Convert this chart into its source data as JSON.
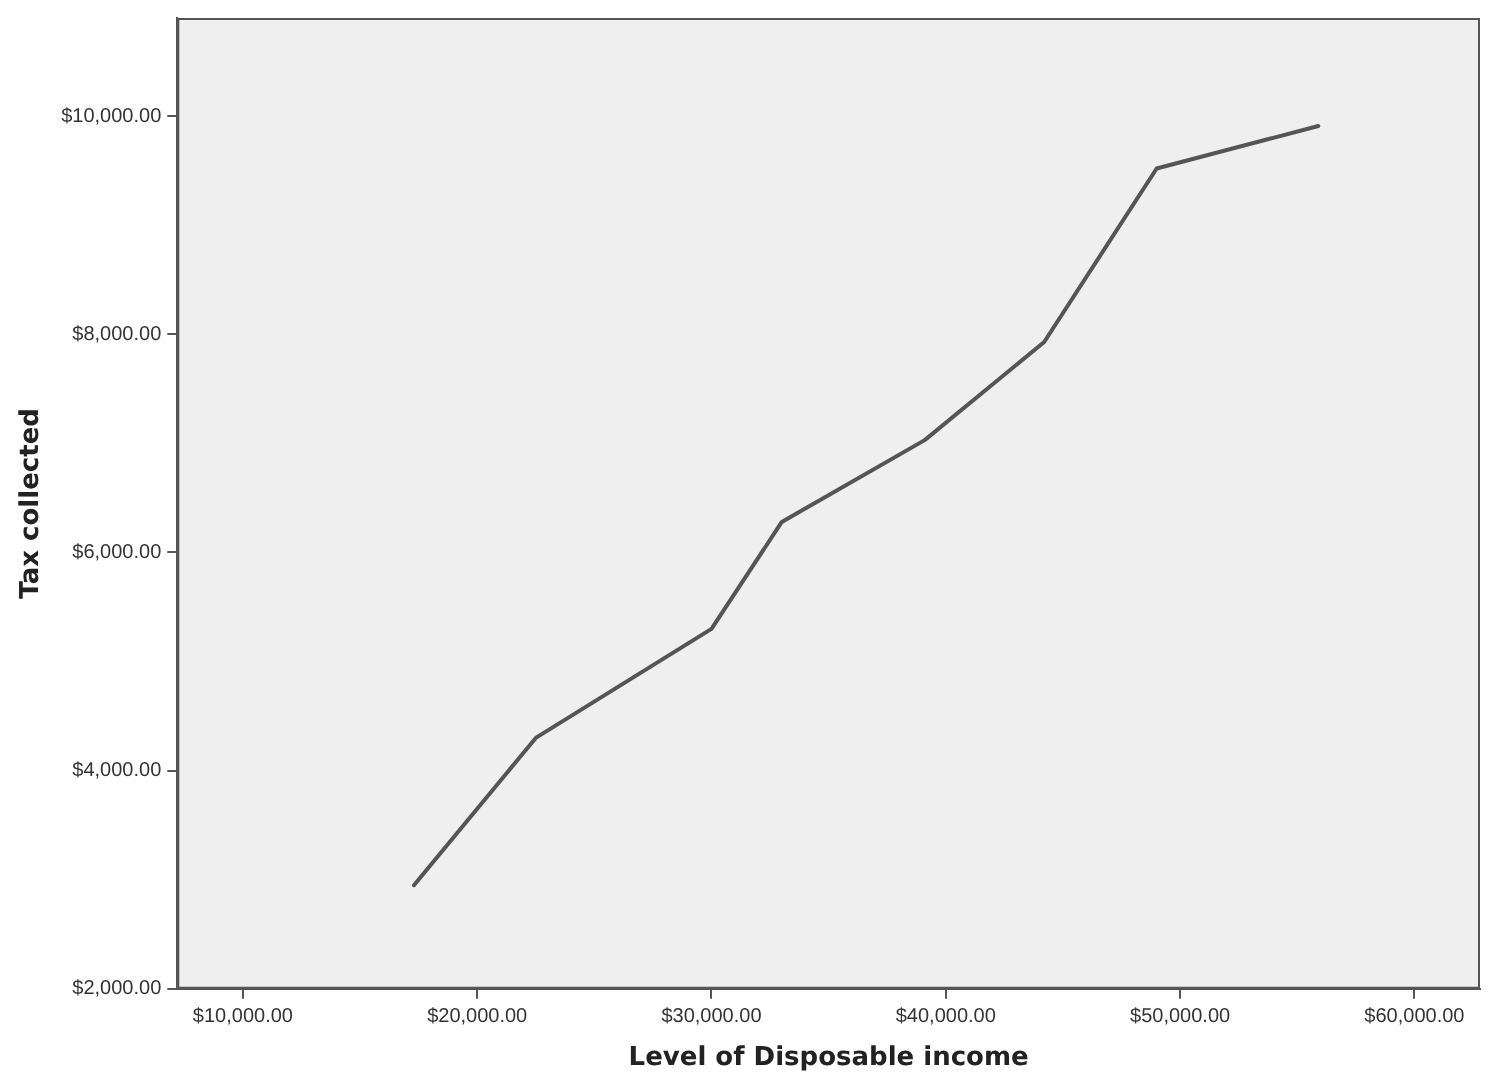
{
  "chart_data": {
    "type": "line",
    "xlabel": "Level of Disposable income",
    "ylabel": "Tax collected",
    "x": [
      17300,
      22500,
      30000,
      33000,
      39100,
      44200,
      49000,
      55900
    ],
    "series": [
      {
        "color": "#555555",
        "values": [
          2950,
          4300,
          5300,
          6280,
          7030,
          7930,
          9520,
          9910
        ]
      }
    ],
    "xlim": [
      7200,
      62800
    ],
    "xticks": [
      {
        "value": 10000,
        "label": "$10,000.00"
      },
      {
        "value": 20000,
        "label": "$20,000.00"
      },
      {
        "value": 30000,
        "label": "$30,000.00"
      },
      {
        "value": 40000,
        "label": "$40,000.00"
      },
      {
        "value": 50000,
        "label": "$50,000.00"
      },
      {
        "value": 60000,
        "label": "$60,000.00"
      }
    ],
    "ylim": [
      2000,
      10900
    ],
    "yticks": [
      {
        "value": 2000,
        "label": "$2,000.00"
      },
      {
        "value": 4000,
        "label": "$4,000.00"
      },
      {
        "value": 6000,
        "label": "$6,000.00"
      },
      {
        "value": 8000,
        "label": "$8,000.00"
      },
      {
        "value": 10000,
        "label": "$10,000.00"
      }
    ],
    "grid": false,
    "legend": false,
    "marker": "none",
    "line_style": "solid"
  }
}
